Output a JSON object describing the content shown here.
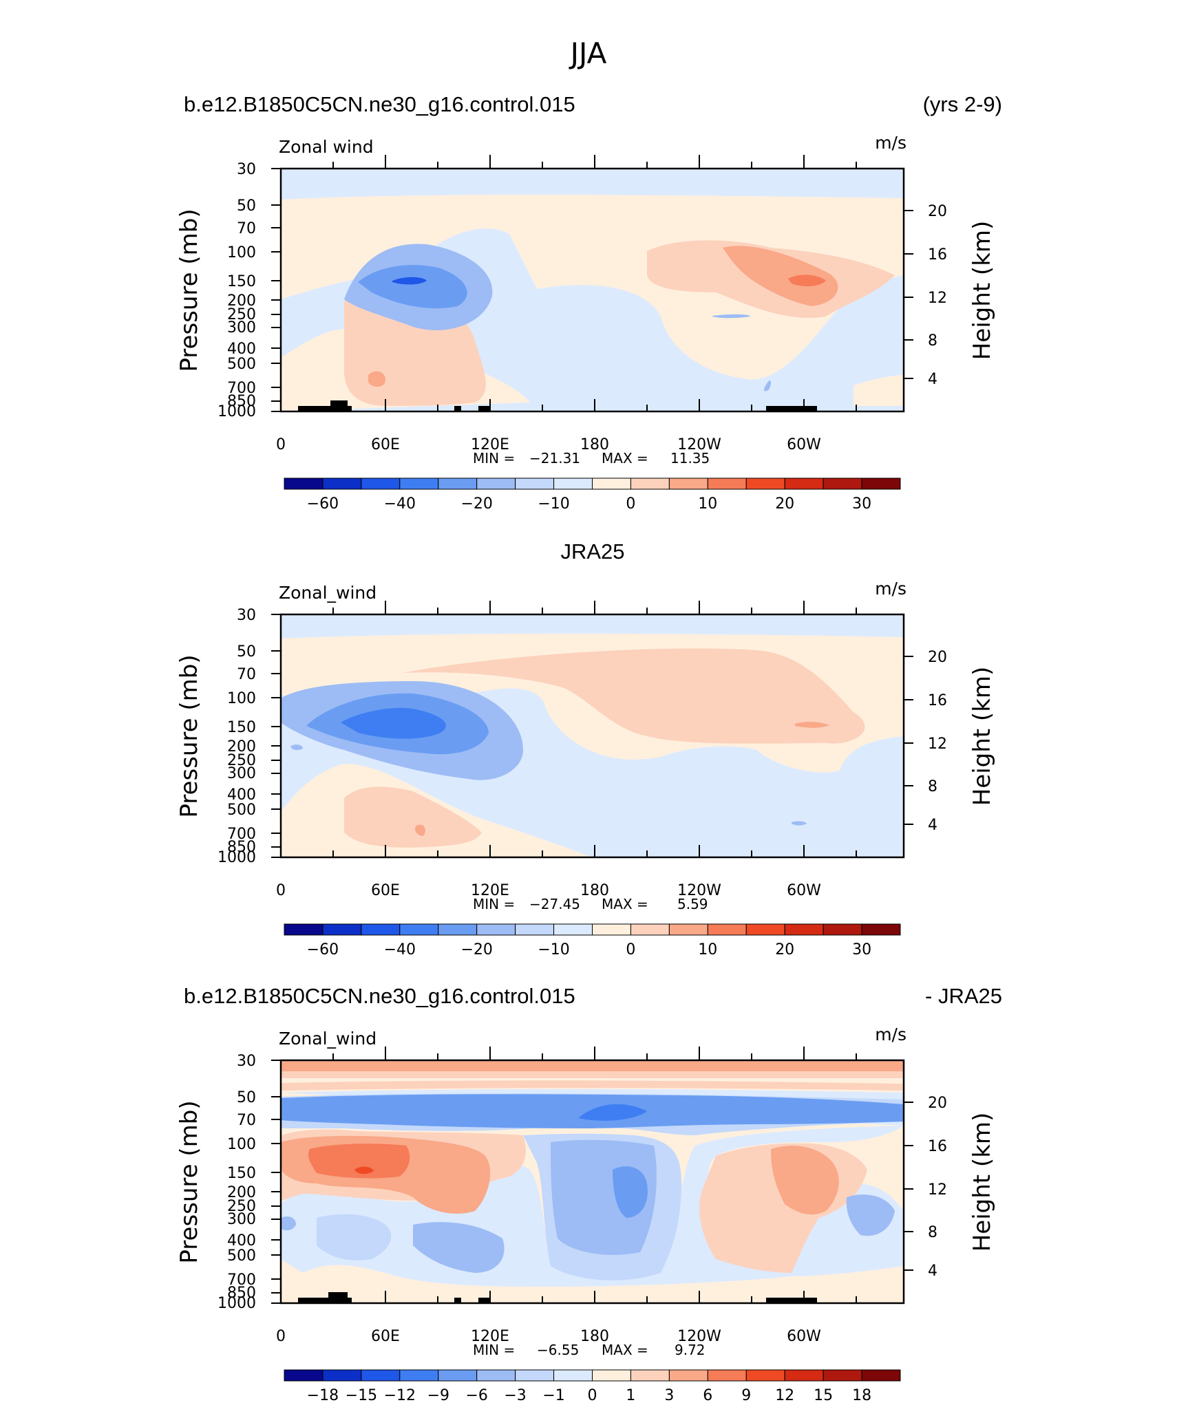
{
  "figure": {
    "title": "JJA",
    "subtitle_right": "(yrs 2-9)"
  },
  "palette": [
    "#08088c",
    "#0c2fc8",
    "#1f57e8",
    "#3f7ef2",
    "#6a9df2",
    "#9dbcf5",
    "#c3d8fa",
    "#dceafe",
    "#fff0de",
    "#fcd2bd",
    "#f9a888",
    "#f67b57",
    "#ef4a24",
    "#d52a14",
    "#ae180e",
    "#7c0608"
  ],
  "chart_data": [
    {
      "type": "heatmap",
      "title_left": "b.e12.B1850C5CN.ne30_g16.control.015",
      "title_right": "(yrs 2-9)",
      "variable": "Zonal wind",
      "units": "m/s",
      "ylabel": "Pressure (mb)",
      "ylabel_right": "Height (km)",
      "x_ticks": [
        "0",
        "60E",
        "120E",
        "180",
        "120W",
        "60W"
      ],
      "y_ticks": [
        "30",
        "50",
        "70",
        "100",
        "150",
        "200",
        "250",
        "300",
        "400",
        "500",
        "700",
        "850",
        "1000"
      ],
      "y2_ticks": [
        "20",
        "16",
        "12",
        "8",
        "4"
      ],
      "min_label": "MIN =",
      "min": "−21.31",
      "max_label": "MAX =",
      "max": "11.35",
      "colorbar_labels": [
        "−60",
        "−40",
        "−20",
        "−10",
        "0",
        "10",
        "20",
        "30"
      ],
      "features": [
        {
          "lon": 75,
          "p": 150,
          "value": -21.31
        },
        {
          "lon": 296,
          "p": 150,
          "value": 11.35
        },
        {
          "lon": 50,
          "p": 600,
          "value": 4
        }
      ]
    },
    {
      "type": "heatmap",
      "title_center": "JRA25",
      "variable": "Zonal_wind",
      "units": "m/s",
      "ylabel": "Pressure (mb)",
      "ylabel_right": "Height (km)",
      "x_ticks": [
        "0",
        "60E",
        "120E",
        "180",
        "120W",
        "60W"
      ],
      "y_ticks": [
        "30",
        "50",
        "70",
        "100",
        "150",
        "200",
        "250",
        "300",
        "400",
        "500",
        "700",
        "850",
        "1000"
      ],
      "y2_ticks": [
        "20",
        "16",
        "12",
        "8",
        "4"
      ],
      "min_label": "MIN =",
      "min": "−27.45",
      "max_label": "MAX =",
      "max": "5.59",
      "colorbar_labels": [
        "−60",
        "−40",
        "−20",
        "−10",
        "0",
        "10",
        "20",
        "30"
      ],
      "features": [
        {
          "lon": 70,
          "p": 150,
          "value": -27.45
        },
        {
          "lon": 300,
          "p": 150,
          "value": 5.59
        }
      ]
    },
    {
      "type": "heatmap",
      "title_left": "b.e12.B1850C5CN.ne30_g16.control.015",
      "title_right": "- JRA25",
      "variable": "Zonal_wind",
      "units": "m/s",
      "ylabel": "Pressure (mb)",
      "ylabel_right": "Height (km)",
      "x_ticks": [
        "0",
        "60E",
        "120E",
        "180",
        "120W",
        "60W"
      ],
      "y_ticks": [
        "30",
        "50",
        "70",
        "100",
        "150",
        "200",
        "250",
        "300",
        "400",
        "500",
        "700",
        "850",
        "1000"
      ],
      "y2_ticks": [
        "20",
        "16",
        "12",
        "8",
        "4"
      ],
      "min_label": "MIN =",
      "min": "−6.55",
      "max_label": "MAX =",
      "max": "9.72",
      "colorbar_labels": [
        "−18",
        "−15",
        "−12",
        "−9",
        "−6",
        "−3",
        "−1",
        "0",
        "1",
        "3",
        "6",
        "9",
        "12",
        "15",
        "18"
      ],
      "features": [
        {
          "lon": 190,
          "p": 60,
          "value": -6.55
        },
        {
          "lon": 50,
          "p": 150,
          "value": 9.72
        }
      ]
    }
  ]
}
